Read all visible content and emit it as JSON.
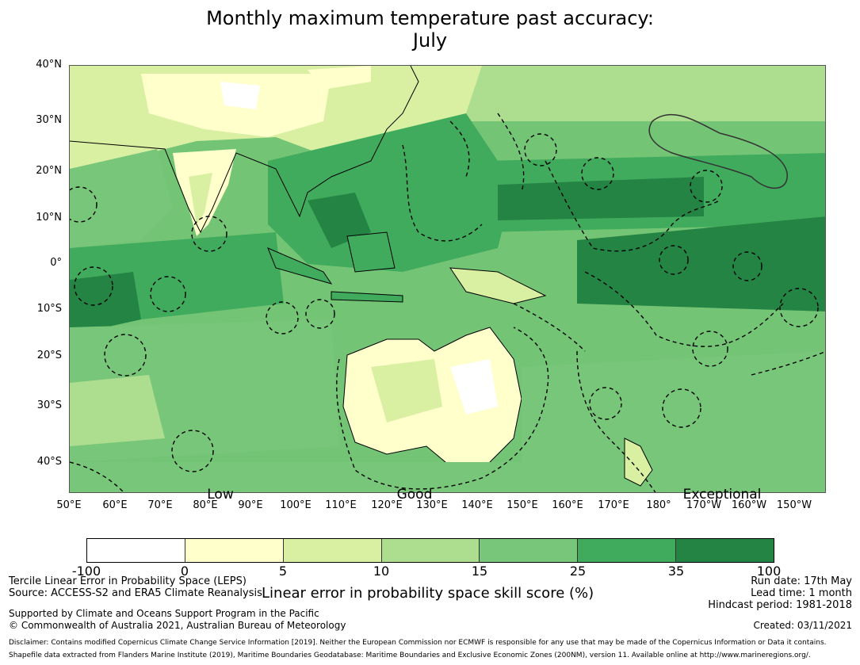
{
  "title": {
    "line1": "Monthly maximum temperature past accuracy:",
    "line2": "July"
  },
  "map": {
    "lat_labels": [
      "40°N",
      "30°N",
      "20°N",
      "10°N",
      "0°",
      "10°S",
      "20°S",
      "30°S",
      "40°S"
    ],
    "lon_labels": [
      "50°E",
      "60°E",
      "70°E",
      "80°E",
      "90°E",
      "100°E",
      "110°E",
      "120°E",
      "130°E",
      "140°E",
      "150°E",
      "160°E",
      "170°E",
      "180°",
      "170°W",
      "160°W",
      "150°W"
    ],
    "category_words": [
      "Low",
      "Good",
      "Exceptional"
    ],
    "colors": {
      "ocean_default": "#74c476",
      "land_outline": "#000000",
      "eez_outline": "#000000"
    }
  },
  "colorbar": {
    "ticks": [
      "-100",
      "0",
      "5",
      "10",
      "15",
      "25",
      "35",
      "100"
    ],
    "colors": [
      "#ffffff",
      "#ffffcc",
      "#d9f0a3",
      "#addd8e",
      "#78c679",
      "#41ab5d",
      "#238443"
    ],
    "title": "Linear error in probability space skill score (%)"
  },
  "footer": {
    "left1": "Tercile Linear Error in Probability Space (LEPS)",
    "left2": "Source: ACCESS-S2 and ERA5 Climate Reanalysis",
    "support1": "Supported by Climate and Oceans Support Program in the Pacific",
    "support2": "© Commonwealth of Australia 2021, Australian Bureau of Meteorology",
    "right1": "Run date: 17th May",
    "right2": "Lead time: 1 month",
    "right3": "Hindcast period: 1981-2018",
    "created": "Created: 03/11/2021",
    "disclaimer1": "Disclaimer: Contains modified Copernicus Climate Change Service Information [2019]. Neither the European Commission nor ECMWF is responsible for any use that may be made of the Copernicus Information or Data it contains.",
    "disclaimer2": "Shapefile data extracted from Flanders Marine Institute (2019), Maritime Boundaries Geodatabase: Maritime Boundaries and Exclusive Economic Zones (200NM), version 11. Available online at http://www.marineregions.org/."
  }
}
